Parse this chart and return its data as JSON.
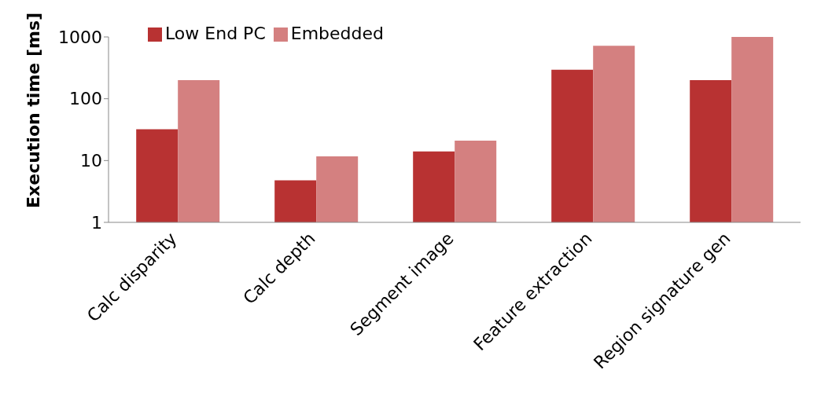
{
  "chart_data": {
    "type": "bar",
    "ylabel": "Execution time [ms]",
    "categories": [
      "Calc disparity",
      "Calc depth",
      "Segment image",
      "Feature extraction",
      "Region signature gen"
    ],
    "series": [
      {
        "name": "Low End PC",
        "color": "#b83232",
        "values": [
          32,
          4.8,
          14,
          295,
          200
        ]
      },
      {
        "name": "Embedded",
        "color": "#d48080",
        "values": [
          200,
          11.7,
          21,
          720,
          1000
        ]
      }
    ],
    "log": true,
    "ylim": [
      1,
      1000
    ],
    "yticks": [
      1,
      10,
      100,
      1000
    ],
    "legend": "top left"
  }
}
